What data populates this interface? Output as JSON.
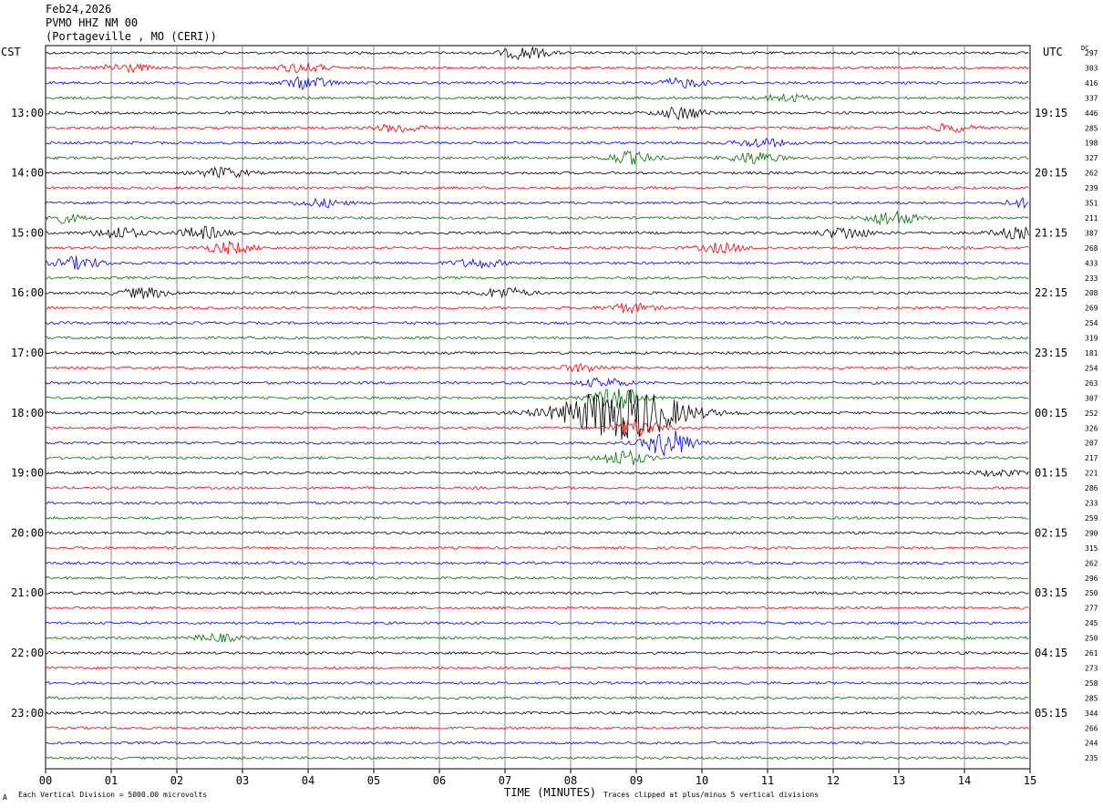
{
  "header": {
    "date": "Feb24,2026",
    "station": "PVMO HHZ NM 00",
    "location": "(Portageville , MO (CERI))"
  },
  "left_timezone": "CST",
  "right_timezone": "UTC",
  "dc_label": "DC",
  "footer": {
    "scale_mark": "A",
    "scale_note": "Each Vertical Division = 5000.00 microvolts",
    "clip_note": "Traces clipped at plus/minus 5 vertical divisions"
  },
  "chart_data": {
    "type": "line",
    "xlabel": "TIME (MINUTES)",
    "xlim": [
      0,
      15
    ],
    "x_ticks": [
      "00",
      "01",
      "02",
      "03",
      "04",
      "05",
      "06",
      "07",
      "08",
      "09",
      "10",
      "11",
      "12",
      "13",
      "14",
      "15"
    ],
    "trace_colors": [
      "#000000",
      "#ff0000",
      "#0000ff",
      "#007000"
    ],
    "left_hour_labels": [
      "13:00",
      "14:00",
      "15:00",
      "16:00",
      "17:00",
      "18:00",
      "19:00",
      "20:00",
      "21:00",
      "22:00",
      "23:00"
    ],
    "right_hour_labels": [
      "19:15",
      "20:15",
      "21:15",
      "22:15",
      "23:15",
      "00:15",
      "01:15",
      "02:15",
      "03:15",
      "04:15",
      "05:15"
    ],
    "hour_label_first_row": 4,
    "rows_per_hour": 4,
    "dc_values": [
      297,
      303,
      416,
      337,
      446,
      285,
      198,
      327,
      262,
      239,
      351,
      211,
      387,
      268,
      433,
      233,
      208,
      269,
      254,
      319,
      181,
      254,
      263,
      307,
      252,
      326,
      207,
      217,
      221,
      286,
      233,
      259,
      290,
      315,
      262,
      296,
      250,
      277,
      245,
      250,
      261,
      273,
      258,
      285,
      344,
      266,
      244,
      235
    ],
    "events": [
      {
        "row": 0,
        "minute": 7.3,
        "amp": 4
      },
      {
        "row": 1,
        "minute": 1.2,
        "amp": 3
      },
      {
        "row": 1,
        "minute": 3.9,
        "amp": 3
      },
      {
        "row": 2,
        "minute": 4.0,
        "amp": 4
      },
      {
        "row": 2,
        "minute": 9.7,
        "amp": 3
      },
      {
        "row": 3,
        "minute": 11.3,
        "amp": 2.5
      },
      {
        "row": 4,
        "minute": 9.7,
        "amp": 4
      },
      {
        "row": 5,
        "minute": 5.4,
        "amp": 3
      },
      {
        "row": 5,
        "minute": 13.8,
        "amp": 2.5
      },
      {
        "row": 6,
        "minute": 10.9,
        "amp": 3
      },
      {
        "row": 7,
        "minute": 8.9,
        "amp": 4
      },
      {
        "row": 7,
        "minute": 10.8,
        "amp": 4
      },
      {
        "row": 8,
        "minute": 2.7,
        "amp": 3.5
      },
      {
        "row": 10,
        "minute": 4.2,
        "amp": 2.5
      },
      {
        "row": 10,
        "minute": 15.0,
        "amp": 3
      },
      {
        "row": 11,
        "minute": 0.2,
        "amp": 3
      },
      {
        "row": 11,
        "minute": 12.9,
        "amp": 5
      },
      {
        "row": 12,
        "minute": 1.1,
        "amp": 4
      },
      {
        "row": 12,
        "minute": 2.4,
        "amp": 4
      },
      {
        "row": 12,
        "minute": 12.2,
        "amp": 4
      },
      {
        "row": 12,
        "minute": 14.8,
        "amp": 3.5
      },
      {
        "row": 13,
        "minute": 2.8,
        "amp": 4
      },
      {
        "row": 13,
        "minute": 10.3,
        "amp": 3
      },
      {
        "row": 14,
        "minute": 0.5,
        "amp": 4
      },
      {
        "row": 14,
        "minute": 6.6,
        "amp": 3
      },
      {
        "row": 16,
        "minute": 1.5,
        "amp": 3.5
      },
      {
        "row": 16,
        "minute": 7.0,
        "amp": 3.5
      },
      {
        "row": 17,
        "minute": 8.9,
        "amp": 3
      },
      {
        "row": 21,
        "minute": 8.2,
        "amp": 2.5
      },
      {
        "row": 22,
        "minute": 8.5,
        "amp": 3
      },
      {
        "row": 23,
        "minute": 8.7,
        "amp": 8
      },
      {
        "row": 24,
        "minute": 8.8,
        "amp": 18
      },
      {
        "row": 25,
        "minute": 9.0,
        "amp": 6
      },
      {
        "row": 26,
        "minute": 9.5,
        "amp": 9
      },
      {
        "row": 27,
        "minute": 8.8,
        "amp": 5
      },
      {
        "row": 28,
        "minute": 14.5,
        "amp": 2
      },
      {
        "row": 39,
        "minute": 2.6,
        "amp": 2.5
      }
    ]
  }
}
